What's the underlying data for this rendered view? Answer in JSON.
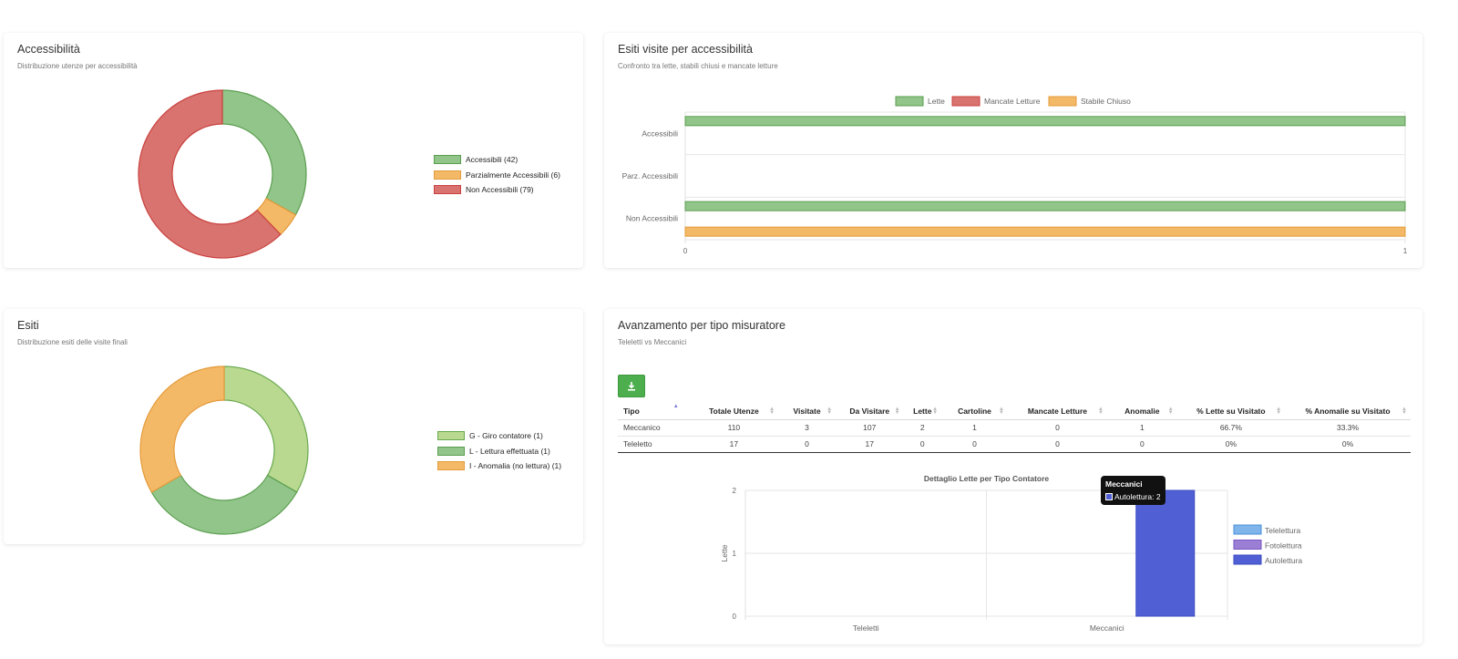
{
  "access_card": {
    "title": "Accessibilità",
    "subtitle": "Distribuzione utenze per accessibilità",
    "legend": [
      "Accessibili (42)",
      "Parzialmente Accessibili (6)",
      "Non Accessibili (79)"
    ]
  },
  "esiti_visite_card": {
    "title": "Esiti visite per accessibilità",
    "subtitle": "Confronto tra lette, stabili chiusi e mancate letture"
  },
  "esiti_card": {
    "title": "Esiti",
    "subtitle": "Distribuzione esiti delle visite finali",
    "legend": [
      "G - Giro contatore (1)",
      "L - Lettura effettuata (1)",
      "I - Anomalia (no lettura) (1)"
    ]
  },
  "avanzamento_card": {
    "title": "Avanzamento per tipo misuratore",
    "subtitle": "Teleletti vs Meccanici",
    "download_icon": "download-icon",
    "table": {
      "headers": [
        "Tipo",
        "Totale Utenze",
        "Visitate",
        "Da Visitare",
        "Lette",
        "Cartoline",
        "Mancate Letture",
        "Anomalie",
        "% Lette su Visitato",
        "% Anomalie su Visitato"
      ],
      "rows": [
        [
          "Meccanico",
          "110",
          "3",
          "107",
          "2",
          "1",
          "0",
          "1",
          "66.7%",
          "33.3%"
        ],
        [
          "Teleletto",
          "17",
          "0",
          "17",
          "0",
          "0",
          "0",
          "0",
          "0%",
          "0%"
        ]
      ]
    },
    "tooltip": {
      "title": "Meccanici",
      "line": "Autolettura: 2"
    }
  },
  "chart_data": [
    {
      "type": "pie",
      "donut": true,
      "title": "Accessibilità",
      "labels": [
        "Accessibili",
        "Parzialmente Accessibili",
        "Non Accessibili"
      ],
      "values": [
        42,
        6,
        79
      ],
      "colors": [
        "#92c58a",
        "#f4b967",
        "#d9736f"
      ],
      "borders": [
        "#5a9e4f",
        "#e49a3a",
        "#c9413e"
      ],
      "legend_position": "right"
    },
    {
      "type": "bar",
      "orientation": "horizontal",
      "title": "Esiti visite per accessibilità",
      "categories": [
        "Accessibili",
        "Parz. Accessibili",
        "Non Accessibili"
      ],
      "series": [
        {
          "name": "Lette",
          "values": [
            1,
            0,
            1
          ],
          "color": "#92c58a",
          "border": "#5a9e4f"
        },
        {
          "name": "Mancate Letture",
          "values": [
            0,
            0,
            0
          ],
          "color": "#d9736f",
          "border": "#c9413e"
        },
        {
          "name": "Stabile Chiuso",
          "values": [
            0,
            0,
            1
          ],
          "color": "#f4b967",
          "border": "#e49a3a"
        }
      ],
      "xlim": [
        0,
        1
      ],
      "x_ticks": [
        "0",
        "1"
      ],
      "legend_position": "top"
    },
    {
      "type": "pie",
      "donut": true,
      "title": "Esiti",
      "labels": [
        "G - Giro contatore",
        "L - Lettura effettuata",
        "I - Anomalia (no lettura)"
      ],
      "values": [
        1,
        1,
        1
      ],
      "colors": [
        "#b8d98f",
        "#92c58a",
        "#f4b967"
      ],
      "borders": [
        "#6aa84f",
        "#5a9e4f",
        "#e49a3a"
      ],
      "legend_position": "right"
    },
    {
      "type": "bar",
      "title": "Dettaglio Lette per Tipo Contatore",
      "categories": [
        "Teleletti",
        "Meccanici"
      ],
      "series": [
        {
          "name": "Telelettura",
          "values": [
            0,
            0
          ],
          "color": "#7fb5ea",
          "border": "#4a90d9"
        },
        {
          "name": "Fotolettura",
          "values": [
            0,
            0
          ],
          "color": "#9b7fd4",
          "border": "#7a55c4"
        },
        {
          "name": "Autolettura",
          "values": [
            0,
            2
          ],
          "color": "#5060d4",
          "border": "#3a4ac0"
        }
      ],
      "ylabel": "Lette",
      "ylim": [
        0,
        2
      ],
      "y_ticks": [
        "0",
        "1",
        "2"
      ],
      "legend_position": "right",
      "grid": true
    }
  ]
}
